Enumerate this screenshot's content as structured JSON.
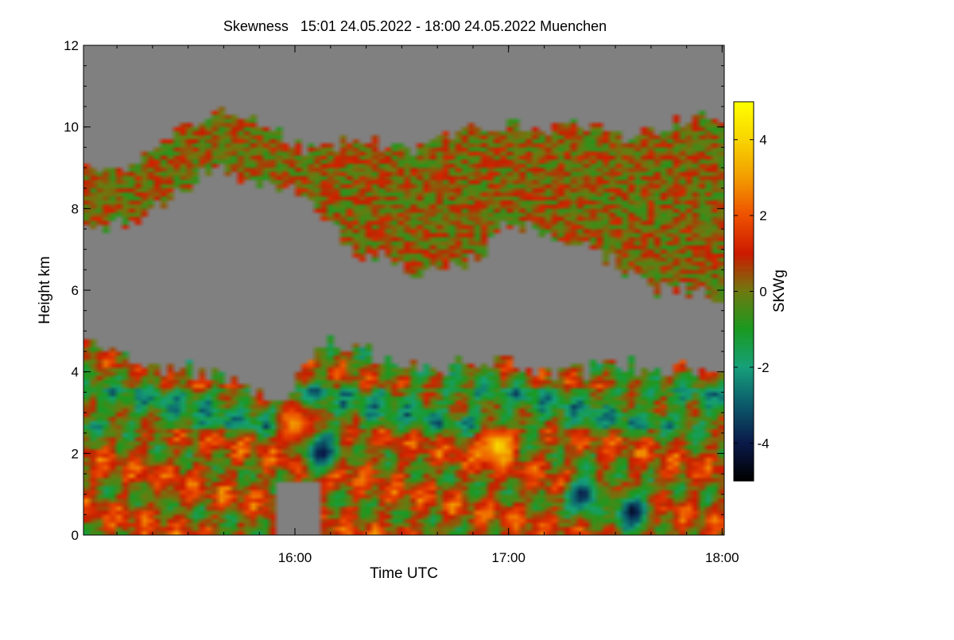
{
  "chart_data": {
    "type": "heatmap",
    "title": "Skewness   15:01 24.05.2022 - 18:00 24.05.2022 Muenchen",
    "xlabel": "Time UTC",
    "ylabel": "Height km",
    "colorbar_label": "SKWg",
    "x_range": [
      15.01,
      18.01
    ],
    "x_tick_values": [
      16,
      17,
      18
    ],
    "x_tick_labels": [
      "16:00",
      "17:00",
      "18:00"
    ],
    "x_minor_step": 0.1667,
    "y_range": [
      0,
      12
    ],
    "y_tick_values": [
      0,
      2,
      4,
      6,
      8,
      10,
      12
    ],
    "y_tick_labels": [
      "0",
      "2",
      "4",
      "6",
      "8",
      "10",
      "12"
    ],
    "y_minor_step": 0.5,
    "colorbar_range": [
      -5,
      5
    ],
    "colorbar_tick_values": [
      -4,
      -2,
      0,
      2,
      4
    ],
    "colorbar_tick_labels": [
      "-4",
      "-2",
      "0",
      "2",
      "4"
    ],
    "no_data_color": "#808080",
    "colormap_stops": [
      {
        "value": -5,
        "color": "#000000"
      },
      {
        "value": -4,
        "color": "#0a1a4a"
      },
      {
        "value": -3,
        "color": "#0b5a6a"
      },
      {
        "value": -2,
        "color": "#16a07a"
      },
      {
        "value": -1,
        "color": "#1a9a20"
      },
      {
        "value": 0,
        "color": "#6e7a10"
      },
      {
        "value": 1,
        "color": "#cc1a00"
      },
      {
        "value": 2,
        "color": "#ee5000"
      },
      {
        "value": 3,
        "color": "#f29c00"
      },
      {
        "value": 4,
        "color": "#f8d400"
      },
      {
        "value": 5,
        "color": "#ffff00"
      }
    ],
    "grid_resolution": {
      "time_step_h": 0.03,
      "height_step_km": 0.1
    },
    "layers": [
      {
        "name": "upper-cloud-layer",
        "base_km": [
          7.5,
          7.6,
          8.2,
          9.0,
          8.6,
          8.6,
          8.0,
          7.0,
          6.7,
          6.4,
          6.6,
          7.6,
          7.4,
          7.0,
          6.4,
          6.0,
          6.0,
          5.8
        ],
        "top_km": [
          9.2,
          8.8,
          9.8,
          10.4,
          10.2,
          9.7,
          9.4,
          9.7,
          9.6,
          9.4,
          10.0,
          10.1,
          10.0,
          10.0,
          9.7,
          10.0,
          10.2,
          10.3
        ],
        "typical_skewness": 0.2
      },
      {
        "name": "boundary-layer",
        "base_km": [
          0,
          0,
          0,
          0,
          0,
          0,
          0,
          0,
          0,
          0,
          0,
          0,
          0,
          0,
          0,
          0,
          0,
          0
        ],
        "top_km": [
          4.8,
          4.3,
          4.1,
          4.0,
          3.5,
          3.1,
          4.8,
          4.7,
          4.2,
          4.1,
          4.2,
          4.4,
          4.0,
          4.1,
          4.2,
          4.1,
          4.0,
          4.0
        ],
        "typical_skewness": 0.0
      }
    ],
    "layer_profile_times_h": [
      15.01,
      15.2,
      15.4,
      15.6,
      15.8,
      15.95,
      16.1,
      16.25,
      16.45,
      16.6,
      16.8,
      17.0,
      17.2,
      17.4,
      17.55,
      17.7,
      17.85,
      18.01
    ],
    "notable_features": [
      {
        "name": "clear-gap-near-surface",
        "time_start_h": 15.92,
        "time_end_h": 16.12,
        "height_top_km": 1.3,
        "value": null
      },
      {
        "name": "negative-streak",
        "time_h": 16.12,
        "height_km": 2.0,
        "value": -4.5
      },
      {
        "name": "negative-streak",
        "time_h": 17.35,
        "height_km": 1.0,
        "value": -4.5
      },
      {
        "name": "negative-streak",
        "time_h": 17.58,
        "height_km": 0.6,
        "value": -4.8
      },
      {
        "name": "positive-patch",
        "time_h": 16.0,
        "height_km": 2.7,
        "value": 3.5
      },
      {
        "name": "positive-patch",
        "time_h": 16.95,
        "height_km": 2.2,
        "value": 4.5
      }
    ]
  }
}
